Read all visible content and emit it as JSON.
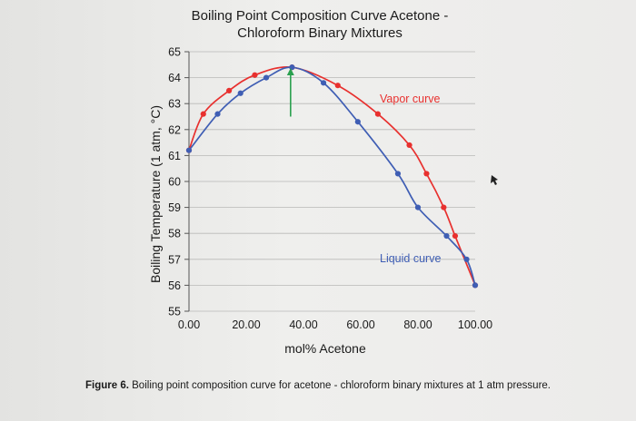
{
  "chart_data": {
    "type": "line",
    "title_lines": [
      "Boiling Point Composition Curve Acetone -",
      "Chloroform Binary Mixtures"
    ],
    "xlabel": "mol% Acetone",
    "ylabel": "Boiling Temperature (1 atm, °C)",
    "xlim": [
      0,
      100
    ],
    "ylim": [
      55,
      65
    ],
    "x_ticks": [
      0,
      20,
      40,
      60,
      80,
      100
    ],
    "x_tick_labels": [
      "0.00",
      "20.00",
      "40.00",
      "60.00",
      "80.00",
      "100.00"
    ],
    "y_ticks": [
      55,
      56,
      57,
      58,
      59,
      60,
      61,
      62,
      63,
      64,
      65
    ],
    "y_tick_labels": [
      "55",
      "56",
      "57",
      "58",
      "59",
      "60",
      "61",
      "62",
      "63",
      "64",
      "65"
    ],
    "grid": true,
    "series": [
      {
        "name": "Vapor curve",
        "color": "#e8302e",
        "x": [
          0,
          5,
          14,
          23,
          36,
          52,
          66,
          77,
          83,
          89,
          93,
          100
        ],
        "y": [
          61.2,
          62.6,
          63.5,
          64.1,
          64.4,
          63.7,
          62.6,
          61.4,
          60.3,
          59.0,
          57.9,
          56.0
        ]
      },
      {
        "name": "Liquid curve",
        "color": "#3f5eb4",
        "x": [
          0,
          10,
          18,
          27,
          36,
          47,
          59,
          73,
          80,
          90,
          97,
          100
        ],
        "y": [
          61.2,
          62.6,
          63.4,
          64.0,
          64.4,
          63.8,
          62.3,
          60.3,
          59.0,
          57.9,
          57.0,
          56.0
        ]
      }
    ],
    "annotations": [
      {
        "type": "arrow",
        "color": "#2aa04e",
        "x": 35.5,
        "y_from": 62.5,
        "y_to": 64.3
      }
    ]
  },
  "caption": {
    "figure_number": "Figure 6.",
    "text": "Boiling point composition curve for acetone - chloroform binary mixtures at 1 atm pressure."
  }
}
